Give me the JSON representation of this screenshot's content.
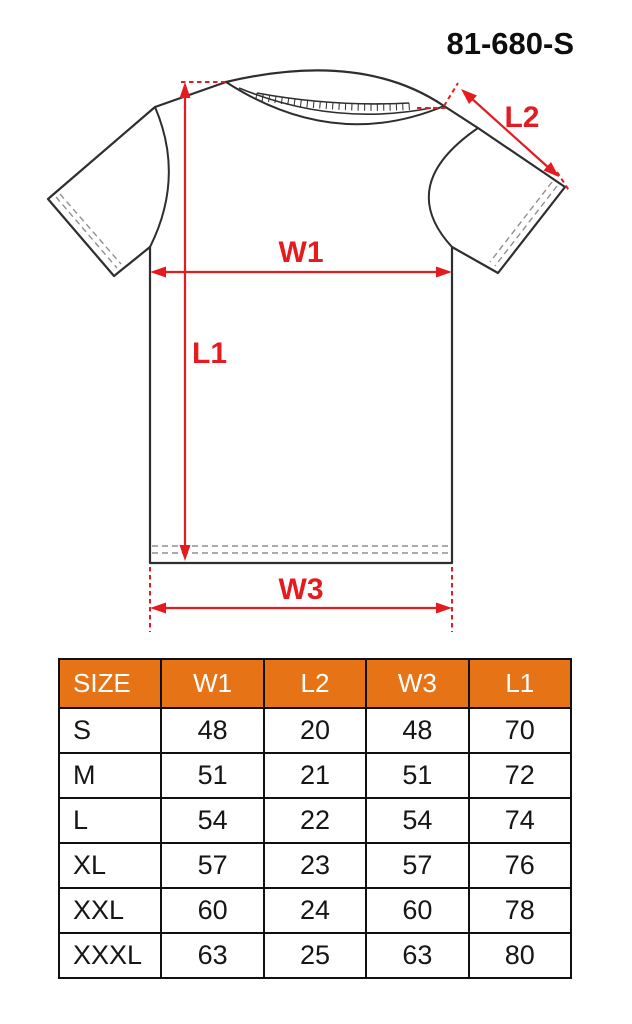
{
  "title": "81-680-S",
  "diagram": {
    "type": "tshirt-measurement-diagram",
    "labels": {
      "w1": "W1",
      "l1": "L1",
      "l2": "L2",
      "w3": "W3"
    },
    "colors": {
      "dimension_red": "#e41b1f",
      "outline": "#2e2e2e",
      "stitch_gray": "#8f8f8f"
    }
  },
  "table": {
    "colors": {
      "header_bg": "#e67417",
      "header_text": "#ffffff",
      "border": "#101010",
      "cell_text": "#161616"
    },
    "columns": [
      "SIZE",
      "W1",
      "L2",
      "W3",
      "L1"
    ],
    "rows": [
      {
        "size": "S",
        "w1": 48,
        "l2": 20,
        "w3": 48,
        "l1": 70
      },
      {
        "size": "M",
        "w1": 51,
        "l2": 21,
        "w3": 51,
        "l1": 72
      },
      {
        "size": "L",
        "w1": 54,
        "l2": 22,
        "w3": 54,
        "l1": 74
      },
      {
        "size": "XL",
        "w1": 57,
        "l2": 23,
        "w3": 57,
        "l1": 76
      },
      {
        "size": "XXL",
        "w1": 60,
        "l2": 24,
        "w3": 60,
        "l1": 78
      },
      {
        "size": "XXXL",
        "w1": 63,
        "l2": 25,
        "w3": 63,
        "l1": 80
      }
    ]
  }
}
